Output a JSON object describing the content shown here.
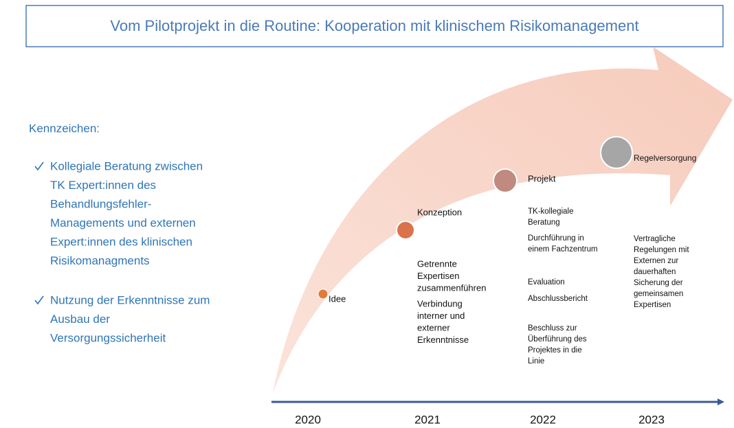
{
  "title": "Vom Pilotprojekt in die Routine: Kooperation mit klinischem Risikomanagement",
  "sidebar": {
    "heading": "Kennzeichen:",
    "bullets": [
      {
        "lines": [
          "Kollegiale Beratung zwischen",
          "TK Expert:innen des",
          "Behandlungsfehler-",
          "Managements und externen",
          "Expert:innen des klinischen",
          "Risikomanagments"
        ]
      },
      {
        "lines": [
          "Nutzung der Erkenntnisse zum",
          "Ausbau der",
          "Versorgungssicherheit"
        ]
      }
    ]
  },
  "stages": [
    {
      "label": "Idee",
      "details": []
    },
    {
      "label": "Konzeption",
      "details": [
        {
          "lines": [
            "Getrennte",
            "Expertisen",
            "zusammenführen"
          ]
        },
        {
          "lines": [
            "Verbindung",
            "interner und",
            "externer",
            "Erkenntnisse"
          ]
        }
      ]
    },
    {
      "label": "Projekt",
      "details": [
        {
          "lines": [
            "TK-kollegiale",
            "Beratung"
          ]
        },
        {
          "lines": [
            "Durchführung in",
            "einem Fachzentrum"
          ]
        },
        {
          "lines": [
            "Evaluation"
          ]
        },
        {
          "lines": [
            "Abschlussbericht"
          ]
        },
        {
          "lines": [
            "Beschluss zur",
            "Überführung des",
            "Projektes in die",
            "Linie"
          ]
        }
      ]
    },
    {
      "label": "Regelversorgung",
      "details": [
        {
          "lines": [
            "Vertragliche",
            "Regelungen mit",
            "Externen zur",
            "dauerhaften",
            "Sicherung der",
            "gemeinsamen",
            "Expertisen"
          ]
        }
      ]
    }
  ],
  "timeline": {
    "years": [
      "2020",
      "2021",
      "2022",
      "2023"
    ]
  }
}
